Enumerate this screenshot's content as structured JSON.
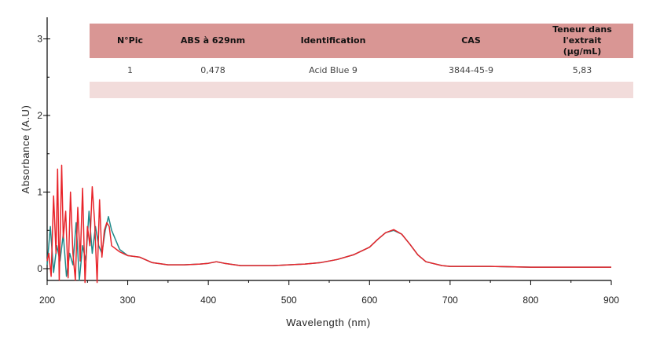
{
  "table": {
    "headers": [
      "N°Pic",
      "ABS à 629nm",
      "Identification",
      "CAS"
    ],
    "header_last_line1": "Teneur dans l'extrait",
    "header_last_line2": "(µg/mL)",
    "rows": [
      [
        "1",
        "0,478",
        "Acid Blue 9",
        "3844-45-9",
        "5,83"
      ]
    ],
    "header_color": "#d99694",
    "empty_row_color": "#f2dcdb"
  },
  "chart_data": {
    "type": "line",
    "xlabel": "Wavelength (nm)",
    "ylabel": "Absorbance (A.U)",
    "x_ticks": [
      200,
      300,
      400,
      500,
      600,
      700,
      800,
      900
    ],
    "y_ticks": [
      0,
      1,
      2,
      3
    ],
    "xlim": [
      200,
      900
    ],
    "ylim": [
      -0.18,
      3.3
    ],
    "series": [
      {
        "color": "#1f8a8a",
        "x": [
          200,
          204,
          208,
          212,
          216,
          220,
          224,
          228,
          232,
          236,
          240,
          244,
          248,
          252,
          256,
          260,
          264,
          268,
          272,
          276,
          280,
          290,
          300,
          315,
          330,
          350,
          370,
          390,
          400,
          410,
          420,
          440,
          460,
          480,
          500,
          520,
          540,
          560,
          580,
          600,
          610,
          620,
          630,
          640,
          650,
          660,
          670,
          690,
          700,
          750,
          800,
          850,
          900
        ],
        "y": [
          0.05,
          0.55,
          -0.05,
          0.3,
          0.1,
          0.45,
          -0.1,
          0.2,
          0.05,
          0.6,
          -0.15,
          0.3,
          0.1,
          0.75,
          0.2,
          0.55,
          0.3,
          0.2,
          0.5,
          0.68,
          0.5,
          0.25,
          0.17,
          0.15,
          0.08,
          0.05,
          0.05,
          0.06,
          0.07,
          0.09,
          0.07,
          0.04,
          0.04,
          0.04,
          0.05,
          0.06,
          0.08,
          0.12,
          0.18,
          0.28,
          0.38,
          0.47,
          0.5,
          0.45,
          0.32,
          0.18,
          0.09,
          0.04,
          0.03,
          0.03,
          0.02,
          0.02,
          0.02
        ]
      },
      {
        "color": "#e8242a",
        "x": [
          200,
          202,
          205,
          208,
          211,
          213,
          215,
          218,
          220,
          223,
          226,
          229,
          232,
          235,
          238,
          241,
          244,
          247,
          250,
          253,
          256,
          259,
          262,
          265,
          268,
          271,
          274,
          277,
          280,
          290,
          300,
          315,
          330,
          350,
          370,
          390,
          400,
          410,
          420,
          440,
          460,
          480,
          500,
          520,
          540,
          560,
          580,
          600,
          610,
          620,
          630,
          640,
          650,
          660,
          670,
          690,
          700,
          750,
          800,
          850,
          900
        ],
        "y": [
          0.1,
          0.2,
          -0.1,
          0.95,
          0.2,
          1.3,
          -0.15,
          1.35,
          0.4,
          0.75,
          -0.12,
          1.0,
          0.2,
          -0.15,
          0.8,
          0.1,
          1.05,
          -0.18,
          0.55,
          0.3,
          1.07,
          0.6,
          -0.18,
          0.9,
          0.15,
          0.5,
          0.6,
          0.55,
          0.3,
          0.22,
          0.17,
          0.15,
          0.08,
          0.05,
          0.05,
          0.06,
          0.07,
          0.09,
          0.07,
          0.04,
          0.04,
          0.04,
          0.05,
          0.06,
          0.08,
          0.12,
          0.18,
          0.28,
          0.38,
          0.47,
          0.51,
          0.45,
          0.32,
          0.18,
          0.09,
          0.04,
          0.03,
          0.03,
          0.02,
          0.02,
          0.02
        ]
      }
    ]
  }
}
